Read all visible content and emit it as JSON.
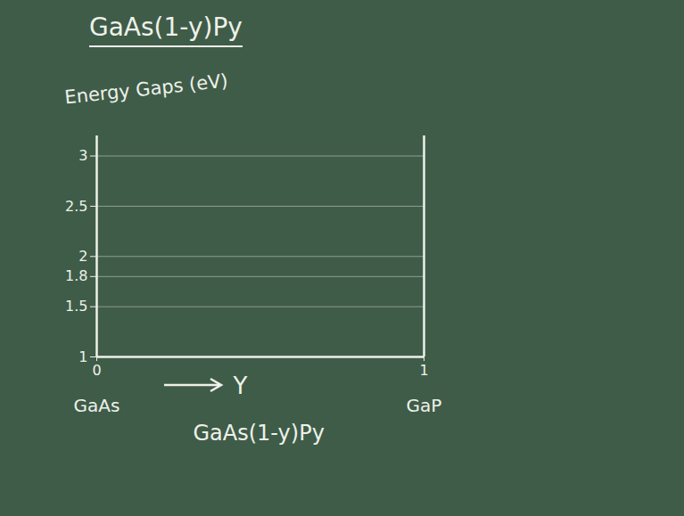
{
  "chart_data": {
    "type": "line",
    "title": "GaAs(1-y)Py",
    "ylabel": "Energy Gaps (eV)",
    "xlabel": "Y",
    "caption": "GaAs(1-y)Py",
    "xlim": [
      0,
      1
    ],
    "xticks": [
      0,
      1
    ],
    "ylim": [
      1,
      3.2
    ],
    "yticks": [
      1,
      1.5,
      1.8,
      2,
      2.5,
      3
    ],
    "grid": true,
    "color": "#eef1ea",
    "annotations": [
      {
        "text": "GaAs",
        "x": 0
      },
      {
        "text": "GaP",
        "x": 1
      }
    ]
  }
}
